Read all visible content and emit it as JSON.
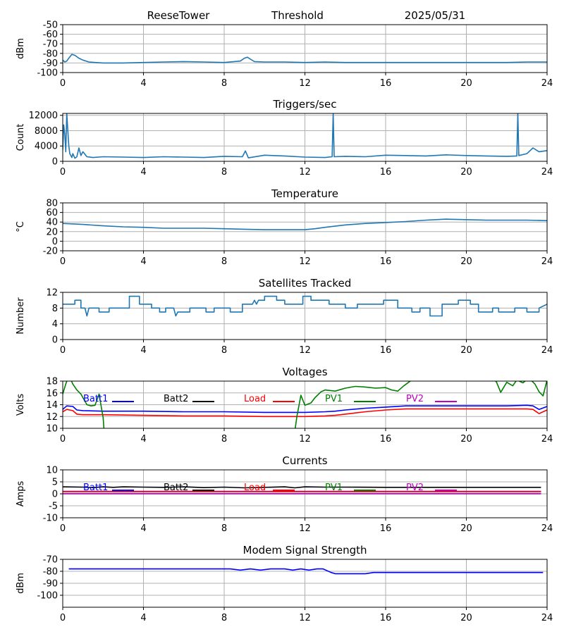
{
  "header": {
    "station": "ReeseTower",
    "mode": "Threshold",
    "date": "2025/05/31"
  },
  "colors": {
    "default_line": "#1f77b4",
    "grid": "#b0b0b0"
  },
  "chart_data": [
    {
      "id": "signal",
      "type": "line",
      "title": "",
      "ylabel": "dBm",
      "xlim": [
        0,
        24
      ],
      "ylim": [
        -100,
        -50
      ],
      "xticks": [
        0,
        4,
        8,
        12,
        16,
        20,
        24
      ],
      "yticks": [
        -100,
        -90,
        -80,
        -70,
        -60,
        -50
      ],
      "grid": true,
      "series": [
        {
          "color": "#1f77b4",
          "x": [
            0,
            0.1,
            0.2,
            0.3,
            0.45,
            0.6,
            0.8,
            1.0,
            1.3,
            1.6,
            2.0,
            3,
            4,
            5,
            6,
            7,
            8,
            8.8,
            9.0,
            9.15,
            9.3,
            9.5,
            10,
            11,
            12,
            13,
            14,
            16,
            18,
            20,
            22,
            23,
            24
          ],
          "y": [
            -87,
            -89,
            -88,
            -85,
            -81,
            -82,
            -85,
            -87,
            -89,
            -89.5,
            -90,
            -90,
            -89.5,
            -89,
            -88.5,
            -89,
            -89.5,
            -88,
            -85,
            -84,
            -86,
            -88.5,
            -89,
            -89,
            -89.5,
            -89,
            -89.5,
            -89.5,
            -89.5,
            -89.5,
            -89.5,
            -89,
            -89
          ]
        }
      ]
    },
    {
      "id": "triggers",
      "type": "line",
      "title": "Triggers/sec",
      "ylabel": "Count",
      "xlim": [
        0,
        24
      ],
      "ylim": [
        0,
        12500
      ],
      "xticks": [
        0,
        4,
        8,
        12,
        16,
        20,
        24
      ],
      "yticks": [
        0,
        4000,
        8000,
        12000
      ],
      "grid": true,
      "series": [
        {
          "color": "#1f77b4",
          "x": [
            0,
            0.05,
            0.1,
            0.15,
            0.2,
            0.25,
            0.3,
            0.35,
            0.4,
            0.45,
            0.5,
            0.6,
            0.7,
            0.8,
            0.9,
            1.0,
            1.2,
            1.5,
            2,
            3,
            4,
            5,
            6,
            7,
            8,
            8.9,
            9.05,
            9.2,
            10,
            11,
            12,
            13,
            13.35,
            13.4,
            13.45,
            14,
            15,
            16,
            17,
            18,
            19,
            20,
            21,
            22,
            22.5,
            22.55,
            22.6,
            23,
            23.3,
            23.6,
            24
          ],
          "y": [
            3000,
            9500,
            7000,
            2500,
            12500,
            8000,
            4000,
            2000,
            1500,
            1000,
            2000,
            800,
            1200,
            3500,
            1500,
            2500,
            1200,
            1000,
            1200,
            1100,
            1000,
            1200,
            1100,
            1000,
            1300,
            1200,
            2700,
            900,
            1600,
            1400,
            1100,
            1000,
            1200,
            12500,
            1200,
            1300,
            1200,
            1600,
            1500,
            1400,
            1700,
            1500,
            1400,
            1300,
            1400,
            12500,
            1500,
            2000,
            3500,
            2500,
            2800
          ]
        }
      ]
    },
    {
      "id": "temperature",
      "type": "line",
      "title": "Temperature",
      "ylabel": "°C",
      "xlim": [
        0,
        24
      ],
      "ylim": [
        -20,
        80
      ],
      "xticks": [
        0,
        4,
        8,
        12,
        16,
        20,
        24
      ],
      "yticks": [
        -20,
        0,
        20,
        40,
        60,
        80
      ],
      "grid": true,
      "series": [
        {
          "color": "#1f77b4",
          "x": [
            0,
            1,
            2,
            3,
            4,
            5,
            6,
            7,
            8,
            9,
            10,
            11,
            12,
            12.5,
            13,
            14,
            15,
            16,
            17,
            18,
            19,
            20,
            21,
            22,
            23,
            24
          ],
          "y": [
            37,
            35,
            32,
            30,
            29,
            27,
            27,
            27,
            26,
            25,
            24,
            24,
            24,
            26,
            29,
            34,
            37,
            39,
            41,
            44,
            46,
            45,
            44,
            44,
            44,
            43
          ]
        }
      ]
    },
    {
      "id": "satellites",
      "type": "line",
      "title": "Satellites Tracked",
      "ylabel": "Number",
      "xlim": [
        0,
        24
      ],
      "ylim": [
        0,
        12
      ],
      "xticks": [
        0,
        4,
        8,
        12,
        16,
        20,
        24
      ],
      "yticks": [
        0,
        4,
        8,
        12
      ],
      "grid": true,
      "series": [
        {
          "color": "#1f77b4",
          "x": [
            0,
            0.6,
            0.6,
            0.9,
            0.9,
            1.1,
            1.2,
            1.3,
            1.3,
            1.8,
            1.8,
            2.3,
            2.3,
            3.3,
            3.3,
            3.8,
            3.8,
            4.4,
            4.4,
            4.8,
            4.8,
            5.1,
            5.1,
            5.5,
            5.6,
            5.7,
            5.7,
            6.3,
            6.3,
            7.1,
            7.1,
            7.5,
            7.5,
            8.3,
            8.3,
            8.9,
            8.9,
            9.4,
            9.5,
            9.6,
            9.7,
            10.0,
            10.0,
            10.6,
            10.6,
            11.0,
            11.0,
            11.9,
            11.9,
            12.3,
            12.3,
            13.2,
            13.2,
            14.0,
            14.0,
            14.6,
            14.6,
            15.9,
            15.9,
            16.6,
            16.6,
            17.3,
            17.3,
            17.7,
            17.7,
            18.2,
            18.2,
            18.8,
            18.8,
            19.6,
            19.6,
            20.2,
            20.2,
            20.6,
            20.6,
            21.3,
            21.3,
            21.6,
            21.6,
            22.4,
            22.4,
            23.0,
            23.0,
            23.6,
            23.6,
            24
          ],
          "y": [
            9,
            9,
            10,
            10,
            8,
            8,
            6,
            8,
            8,
            8,
            7,
            7,
            8,
            8,
            11,
            11,
            9,
            9,
            8,
            8,
            7,
            7,
            8,
            8,
            6,
            7,
            7,
            7,
            8,
            8,
            7,
            7,
            8,
            8,
            7,
            7,
            9,
            9,
            10,
            9,
            10,
            10,
            11,
            11,
            10,
            10,
            9,
            9,
            11,
            11,
            10,
            10,
            9,
            9,
            8,
            8,
            9,
            9,
            10,
            10,
            8,
            8,
            7,
            7,
            8,
            8,
            6,
            6,
            9,
            9,
            10,
            10,
            9,
            9,
            7,
            7,
            8,
            8,
            7,
            7,
            8,
            8,
            7,
            7,
            8,
            9
          ]
        }
      ]
    },
    {
      "id": "voltages",
      "type": "line",
      "title": "Voltages",
      "ylabel": "Volts",
      "xlim": [
        0,
        24
      ],
      "ylim": [
        10,
        18
      ],
      "xticks": [
        0,
        4,
        8,
        12,
        16,
        20,
        24
      ],
      "yticks": [
        10,
        12,
        14,
        16,
        18
      ],
      "grid": true,
      "legend": "inside-top",
      "series": [
        {
          "name": "Batt1",
          "color": "#0000ff",
          "x": [
            0,
            0.2,
            0.5,
            0.7,
            1,
            2,
            4,
            6,
            8,
            10,
            12,
            13,
            13.5,
            14,
            15,
            16,
            17,
            18,
            20,
            22,
            23,
            23.3,
            23.6,
            24
          ],
          "y": [
            13.2,
            13.8,
            13.7,
            13.1,
            13.0,
            12.9,
            12.9,
            12.8,
            12.8,
            12.7,
            12.7,
            12.8,
            12.9,
            13.1,
            13.4,
            13.6,
            13.8,
            13.8,
            13.8,
            13.8,
            13.9,
            13.8,
            13.2,
            13.7
          ]
        },
        {
          "name": "Batt2",
          "color": "#000000",
          "x": [],
          "y": []
        },
        {
          "name": "Load",
          "color": "#ff0000",
          "x": [
            0,
            0.2,
            0.5,
            0.7,
            1,
            2,
            4,
            6,
            8,
            10,
            12,
            13,
            13.5,
            14,
            15,
            16,
            17,
            18,
            20,
            22,
            23,
            23.3,
            23.6,
            24
          ],
          "y": [
            12.8,
            13.2,
            13.0,
            12.4,
            12.3,
            12.3,
            12.2,
            12.1,
            12.1,
            12.0,
            12.0,
            12.1,
            12.2,
            12.4,
            12.8,
            13.1,
            13.3,
            13.3,
            13.3,
            13.3,
            13.3,
            13.2,
            12.5,
            13.1
          ]
        },
        {
          "name": "PV1",
          "color": "#008000",
          "x": [
            0,
            0.15,
            0.3,
            0.5,
            0.7,
            0.9,
            1.0,
            1.2,
            1.4,
            1.6,
            1.8,
            2.0,
            2.05,
            11.5,
            11.6,
            11.8,
            12.0,
            12.3,
            12.5,
            12.8,
            13.0,
            13.5,
            14,
            14.5,
            15,
            15.5,
            16,
            16.3,
            16.6,
            16.9,
            17.3,
            17.6,
            21.2,
            21.5,
            21.7,
            22.0,
            22.3,
            22.5,
            22.8,
            23.1,
            23.4,
            23.6,
            23.8,
            24
          ],
          "y": [
            15.8,
            17.5,
            19,
            17.5,
            16.5,
            15.8,
            15.2,
            14.0,
            13.8,
            13.9,
            15.8,
            11.8,
            9.5,
            9.5,
            12.0,
            15.6,
            13.9,
            14.3,
            15.2,
            16.2,
            16.5,
            16.3,
            16.8,
            17.1,
            17.0,
            16.8,
            16.9,
            16.5,
            16.3,
            17.2,
            18.2,
            19,
            19,
            17.8,
            16.1,
            17.8,
            17.2,
            18.2,
            17.7,
            18.5,
            17.5,
            16.2,
            15.5,
            18.2
          ]
        },
        {
          "name": "PV2",
          "color": "#bf00bf",
          "x": [],
          "y": []
        }
      ]
    },
    {
      "id": "currents",
      "type": "line",
      "title": "Currents",
      "ylabel": "Amps",
      "xlim": [
        0,
        24
      ],
      "ylim": [
        -10,
        10
      ],
      "xticks": [
        0,
        4,
        8,
        12,
        16,
        20,
        24
      ],
      "yticks": [
        -10,
        -5,
        0,
        5,
        10
      ],
      "grid": true,
      "legend": "inside-top",
      "series": [
        {
          "name": "Batt1",
          "color": "#0000ff",
          "x": [
            0,
            6,
            12,
            18,
            23.7
          ],
          "y": [
            1.0,
            1.0,
            1.0,
            1.0,
            1.0
          ]
        },
        {
          "name": "Batt2",
          "color": "#000000",
          "x": [
            0,
            1,
            1.5,
            2,
            2.5,
            3,
            4,
            5,
            6,
            7,
            8,
            9,
            10,
            11,
            11.5,
            12,
            13,
            14,
            16,
            18,
            20,
            22,
            23.7
          ],
          "y": [
            2.9,
            2.8,
            2.6,
            2.9,
            2.7,
            2.9,
            2.8,
            2.7,
            2.9,
            2.6,
            2.8,
            2.5,
            2.7,
            2.9,
            2.5,
            2.9,
            2.8,
            2.8,
            2.7,
            2.7,
            2.7,
            2.7,
            2.7
          ]
        },
        {
          "name": "Load",
          "color": "#ff0000",
          "x": [
            0,
            6,
            12,
            18,
            23.7
          ],
          "y": [
            0.9,
            0.9,
            0.9,
            0.9,
            0.9
          ]
        },
        {
          "name": "PV1",
          "color": "#008000",
          "x": [
            0,
            6,
            12,
            18,
            23.7
          ],
          "y": [
            0.0,
            0.0,
            0.0,
            0.0,
            0.0
          ]
        },
        {
          "name": "PV2",
          "color": "#bf00bf",
          "x": [
            0,
            6,
            12,
            18,
            23.7
          ],
          "y": [
            0.1,
            0.1,
            0.1,
            0.1,
            0.1
          ]
        }
      ]
    },
    {
      "id": "modem",
      "type": "line",
      "title": "Modem Signal Strength",
      "ylabel": "dBm",
      "xlim": [
        0,
        24
      ],
      "ylim": [
        -110,
        -70
      ],
      "xticks": [
        0,
        4,
        8,
        12,
        16,
        20,
        24
      ],
      "yticks": [
        -100,
        -90,
        -80,
        -70
      ],
      "grid": true,
      "series": [
        {
          "color": "#0000ff",
          "x": [
            0.3,
            8.3,
            8.8,
            9.3,
            9.8,
            10.3,
            10.6,
            11.0,
            11.4,
            11.8,
            12.2,
            12.6,
            12.9,
            13.3,
            13.5,
            15.0,
            15.4,
            16,
            18,
            20,
            22,
            23.8
          ],
          "y": [
            -78,
            -78,
            -79,
            -78,
            -79,
            -78,
            -78,
            -78,
            -79,
            -78,
            -79,
            -78,
            -78,
            -81,
            -82,
            -82,
            -81,
            -81,
            -81,
            -81,
            -81,
            -81
          ]
        }
      ]
    }
  ]
}
